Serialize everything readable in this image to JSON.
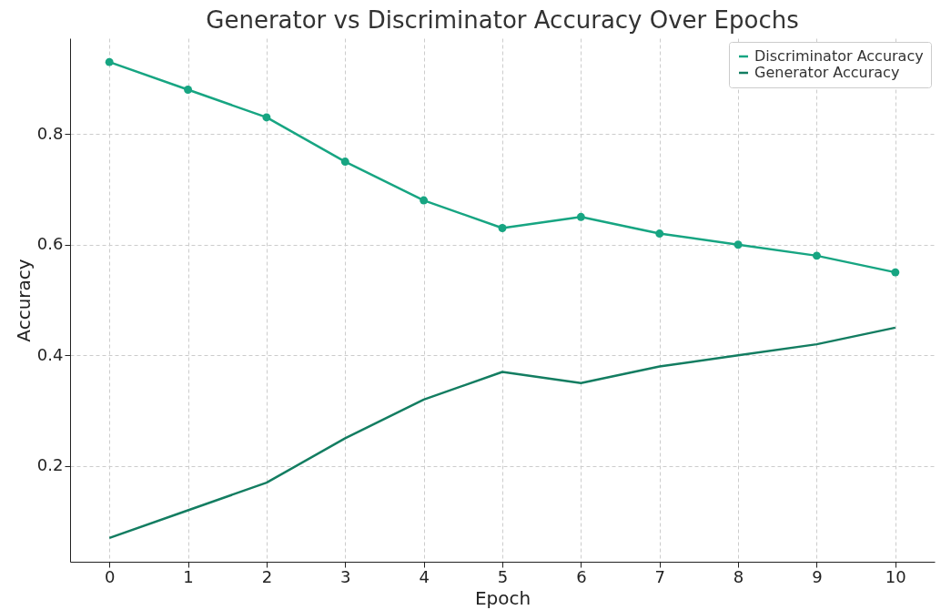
{
  "chart_data": {
    "type": "line",
    "title": "Generator vs Discriminator Accuracy Over Epochs",
    "xlabel": "Epoch",
    "ylabel": "Accuracy",
    "x": [
      0,
      1,
      2,
      3,
      4,
      5,
      6,
      7,
      8,
      9,
      10
    ],
    "series": [
      {
        "name": "Discriminator Accuracy",
        "color": "#17a582",
        "marker": "circle",
        "values": [
          0.93,
          0.88,
          0.83,
          0.75,
          0.68,
          0.63,
          0.65,
          0.62,
          0.6,
          0.58,
          0.55
        ]
      },
      {
        "name": "Generator Accuracy",
        "color": "#137d61",
        "marker": "none",
        "values": [
          0.07,
          0.12,
          0.17,
          0.25,
          0.32,
          0.37,
          0.35,
          0.38,
          0.4,
          0.42,
          0.45
        ]
      }
    ],
    "xlim": [
      -0.5,
      10.5
    ],
    "xticks": [
      0,
      1,
      2,
      3,
      4,
      5,
      6,
      7,
      8,
      9,
      10
    ],
    "ylim": [
      0.027,
      0.973
    ],
    "yticks": [
      0.2,
      0.4,
      0.6,
      0.8
    ],
    "grid": true,
    "legend": "top right",
    "line_style": "solid"
  }
}
